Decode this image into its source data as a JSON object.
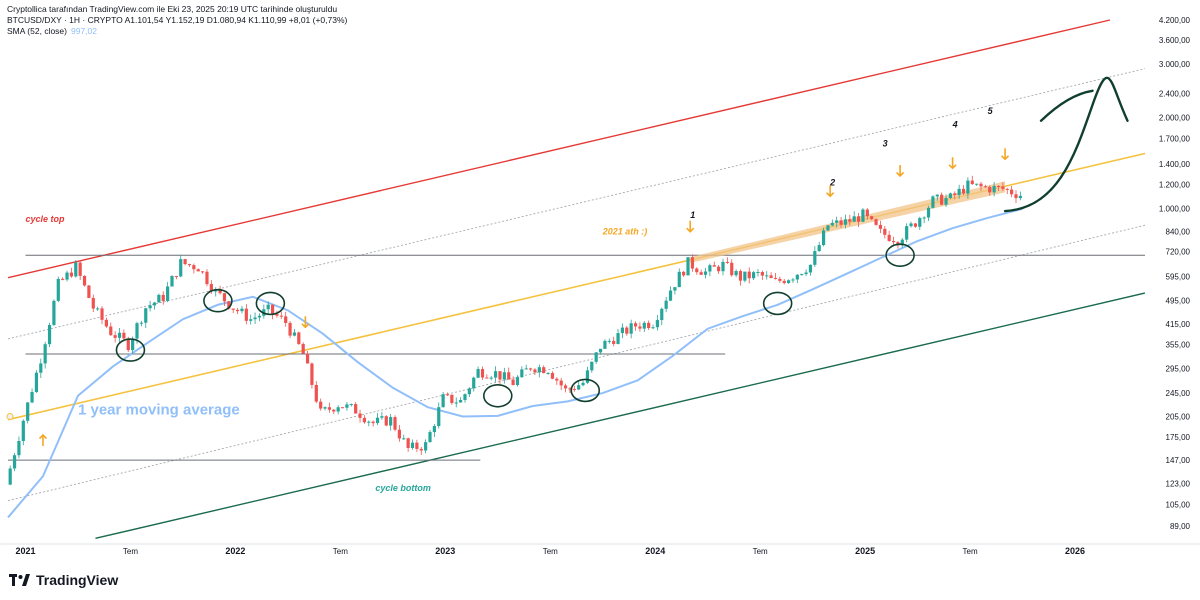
{
  "header": {
    "line1": "Cryptollica tarafından TradingView.com ile Eki 23, 2025 20:19 UTC tarihinde oluşturuldu",
    "line2": "BTCUSD/DXY · 1H · CRYPTO  A1.101,54  Y1.152,19  D1.080,94  K1.110,99  +8,01 (+0,73%)",
    "line3_label": "SMA (52, close)",
    "line3_value": "997,02"
  },
  "brand": {
    "name": "TradingView"
  },
  "colors": {
    "up": "#26a69a",
    "down": "#ef5350",
    "sma": "#90bff9",
    "cycle_top": "#e53935",
    "cycle_bottom": "#1b6b4d",
    "mid_band": "#f5c342",
    "arrow": "#f5a623",
    "ink": "#113f2e"
  },
  "chart_data": {
    "type": "line",
    "title": "",
    "xlabel": "",
    "ylabel": "",
    "scale": "log",
    "ylim": [
      80,
      4200
    ],
    "xlim": [
      "2020-12",
      "2026-05"
    ],
    "x_ticks": [
      {
        "label": "2021",
        "x": "2021-01"
      },
      {
        "label": "Tem",
        "x": "2021-07"
      },
      {
        "label": "2022",
        "x": "2022-01"
      },
      {
        "label": "Tem",
        "x": "2022-07"
      },
      {
        "label": "2023",
        "x": "2023-01"
      },
      {
        "label": "Tem",
        "x": "2023-07"
      },
      {
        "label": "2024",
        "x": "2024-01"
      },
      {
        "label": "Tem",
        "x": "2024-07"
      },
      {
        "label": "2025",
        "x": "2025-01"
      },
      {
        "label": "Tem",
        "x": "2025-07"
      },
      {
        "label": "2026",
        "x": "2026-01"
      }
    ],
    "y_ticks": [
      {
        "label": "4.200,00",
        "v": 4200
      },
      {
        "label": "3.600,00",
        "v": 3600
      },
      {
        "label": "3.000,00",
        "v": 3000
      },
      {
        "label": "2.400,00",
        "v": 2400
      },
      {
        "label": "2.000,00",
        "v": 2000
      },
      {
        "label": "1.700,00",
        "v": 1700
      },
      {
        "label": "1.400,00",
        "v": 1400
      },
      {
        "label": "1.200,00",
        "v": 1200
      },
      {
        "label": "1.000,00",
        "v": 1000
      },
      {
        "label": "840,00",
        "v": 840
      },
      {
        "label": "720,00",
        "v": 720
      },
      {
        "label": "595,00",
        "v": 595
      },
      {
        "label": "495,00",
        "v": 495
      },
      {
        "label": "415,00",
        "v": 415
      },
      {
        "label": "355,00",
        "v": 355
      },
      {
        "label": "295,00",
        "v": 295
      },
      {
        "label": "245,00",
        "v": 245
      },
      {
        "label": "205,00",
        "v": 205
      },
      {
        "label": "175,00",
        "v": 175
      },
      {
        "label": "147,00",
        "v": 147
      },
      {
        "label": "123,00",
        "v": 123
      },
      {
        "label": "105,00",
        "v": 105
      },
      {
        "label": "89,00",
        "v": 89
      }
    ],
    "price_series": [
      {
        "x": "2020-12",
        "v": 122
      },
      {
        "x": "2021-01",
        "v": 200
      },
      {
        "x": "2021-02",
        "v": 320
      },
      {
        "x": "2021-03",
        "v": 560
      },
      {
        "x": "2021-04",
        "v": 640
      },
      {
        "x": "2021-05",
        "v": 470
      },
      {
        "x": "2021-06",
        "v": 390
      },
      {
        "x": "2021-07",
        "v": 355
      },
      {
        "x": "2021-08",
        "v": 470
      },
      {
        "x": "2021-09",
        "v": 510
      },
      {
        "x": "2021-10",
        "v": 660
      },
      {
        "x": "2021-11",
        "v": 640
      },
      {
        "x": "2021-12",
        "v": 530
      },
      {
        "x": "2022-01",
        "v": 470
      },
      {
        "x": "2022-02",
        "v": 430
      },
      {
        "x": "2022-03",
        "v": 460
      },
      {
        "x": "2022-04",
        "v": 420
      },
      {
        "x": "2022-05",
        "v": 330
      },
      {
        "x": "2022-06",
        "v": 210
      },
      {
        "x": "2022-07",
        "v": 225
      },
      {
        "x": "2022-08",
        "v": 215
      },
      {
        "x": "2022-09",
        "v": 195
      },
      {
        "x": "2022-10",
        "v": 200
      },
      {
        "x": "2022-11",
        "v": 160
      },
      {
        "x": "2022-12",
        "v": 165
      },
      {
        "x": "2023-01",
        "v": 235
      },
      {
        "x": "2023-02",
        "v": 230
      },
      {
        "x": "2023-03",
        "v": 290
      },
      {
        "x": "2023-04",
        "v": 285
      },
      {
        "x": "2023-05",
        "v": 265
      },
      {
        "x": "2023-06",
        "v": 300
      },
      {
        "x": "2023-07",
        "v": 295
      },
      {
        "x": "2023-08",
        "v": 250
      },
      {
        "x": "2023-09",
        "v": 265
      },
      {
        "x": "2023-10",
        "v": 350
      },
      {
        "x": "2023-11",
        "v": 380
      },
      {
        "x": "2023-12",
        "v": 410
      },
      {
        "x": "2024-01",
        "v": 420
      },
      {
        "x": "2024-02",
        "v": 540
      },
      {
        "x": "2024-03",
        "v": 660
      },
      {
        "x": "2024-04",
        "v": 615
      },
      {
        "x": "2024-05",
        "v": 650
      },
      {
        "x": "2024-06",
        "v": 590
      },
      {
        "x": "2024-07",
        "v": 605
      },
      {
        "x": "2024-08",
        "v": 570
      },
      {
        "x": "2024-09",
        "v": 600
      },
      {
        "x": "2024-10",
        "v": 650
      },
      {
        "x": "2024-11",
        "v": 880
      },
      {
        "x": "2024-12",
        "v": 900
      },
      {
        "x": "2025-01",
        "v": 950
      },
      {
        "x": "2025-02",
        "v": 830
      },
      {
        "x": "2025-03",
        "v": 790
      },
      {
        "x": "2025-04",
        "v": 900
      },
      {
        "x": "2025-05",
        "v": 1060
      },
      {
        "x": "2025-06",
        "v": 1080
      },
      {
        "x": "2025-07",
        "v": 1190
      },
      {
        "x": "2025-08",
        "v": 1170
      },
      {
        "x": "2025-09",
        "v": 1160
      },
      {
        "x": "2025-10",
        "v": 1110
      }
    ],
    "sma_series": {
      "name": "SMA (52, close)",
      "values": [
        {
          "x": "2020-12",
          "v": 95
        },
        {
          "x": "2021-02",
          "v": 130
        },
        {
          "x": "2021-04",
          "v": 240
        },
        {
          "x": "2021-06",
          "v": 300
        },
        {
          "x": "2021-08",
          "v": 360
        },
        {
          "x": "2021-10",
          "v": 430
        },
        {
          "x": "2021-12",
          "v": 480
        },
        {
          "x": "2022-02",
          "v": 510
        },
        {
          "x": "2022-04",
          "v": 460
        },
        {
          "x": "2022-06",
          "v": 385
        },
        {
          "x": "2022-08",
          "v": 310
        },
        {
          "x": "2022-10",
          "v": 255
        },
        {
          "x": "2022-12",
          "v": 220
        },
        {
          "x": "2023-02",
          "v": 205
        },
        {
          "x": "2023-04",
          "v": 206
        },
        {
          "x": "2023-06",
          "v": 222
        },
        {
          "x": "2023-08",
          "v": 230
        },
        {
          "x": "2023-10",
          "v": 245
        },
        {
          "x": "2023-12",
          "v": 270
        },
        {
          "x": "2024-02",
          "v": 325
        },
        {
          "x": "2024-04",
          "v": 400
        },
        {
          "x": "2024-06",
          "v": 440
        },
        {
          "x": "2024-08",
          "v": 480
        },
        {
          "x": "2024-10",
          "v": 540
        },
        {
          "x": "2024-12",
          "v": 610
        },
        {
          "x": "2025-02",
          "v": 690
        },
        {
          "x": "2025-04",
          "v": 780
        },
        {
          "x": "2025-06",
          "v": 860
        },
        {
          "x": "2025-08",
          "v": 930
        },
        {
          "x": "2025-10",
          "v": 997
        }
      ]
    },
    "trend_lines": [
      {
        "name": "cycle top",
        "from": {
          "x": "2020-12",
          "v": 590
        },
        "to": {
          "x": "2026-03",
          "v": 4200
        }
      },
      {
        "name": "2021 ath",
        "from": {
          "x": "2020-12",
          "v": 200
        },
        "to": {
          "x": "2026-05",
          "v": 1520
        }
      },
      {
        "name": "cycle bottom",
        "from": {
          "x": "2021-05",
          "v": 81
        },
        "to": {
          "x": "2026-05",
          "v": 525
        }
      },
      {
        "name": "upper dotted channel",
        "from": {
          "x": "2020-12",
          "v": 370
        },
        "to": {
          "x": "2026-05",
          "v": 2900
        }
      },
      {
        "name": "lower dotted channel",
        "from": {
          "x": "2020-12",
          "v": 108
        },
        "to": {
          "x": "2026-05",
          "v": 880
        }
      }
    ],
    "horizontal_levels": [
      {
        "v": 700,
        "from": "2021-01",
        "to": "2026-05"
      },
      {
        "v": 330,
        "from": "2021-01",
        "to": "2024-05"
      },
      {
        "v": 147,
        "from": "2020-12",
        "to": "2023-03"
      }
    ],
    "annotations": [
      {
        "text": "cycle top",
        "x": "2021-01",
        "v": 900,
        "color": "#e53935"
      },
      {
        "text": "1 year moving average",
        "x": "2021-04",
        "v": 208,
        "color": "#90bff9"
      },
      {
        "text": "cycle bottom",
        "x": "2022-09",
        "v": 116,
        "color": "#26a69a"
      },
      {
        "text": "2021 ath :)",
        "x": "2023-10",
        "v": 820,
        "color": "#f5a623"
      },
      {
        "text": "1",
        "x": "2024-03",
        "v": 930,
        "color": "#131722"
      },
      {
        "text": "2",
        "x": "2024-11",
        "v": 1190,
        "color": "#131722"
      },
      {
        "text": "3",
        "x": "2025-02",
        "v": 1600,
        "color": "#131722"
      },
      {
        "text": "4",
        "x": "2025-06",
        "v": 1850,
        "color": "#131722"
      },
      {
        "text": "5",
        "x": "2025-08",
        "v": 2050,
        "color": "#131722"
      }
    ],
    "grid": false,
    "legend": "none"
  }
}
